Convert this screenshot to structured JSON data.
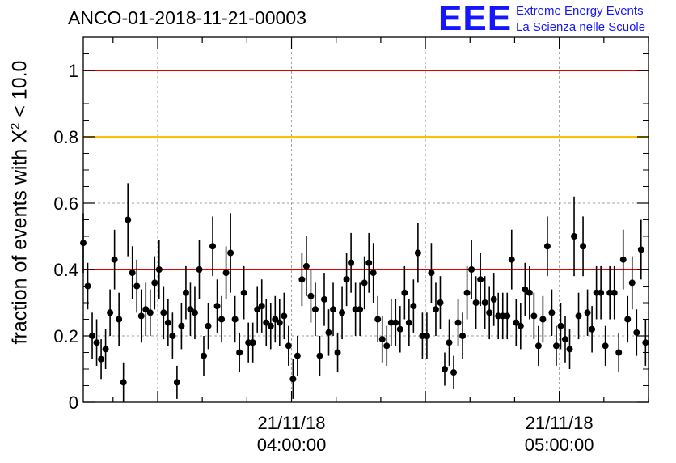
{
  "header": {
    "run_id": "ANCO-01-2018-11-21-00003",
    "logo_mark": "EEE",
    "logo_line1": "Extreme Energy Events",
    "logo_line2": "La Scienza nelle Scuole"
  },
  "colors": {
    "threshold_red": "#e00000",
    "threshold_yellow": "#ffc000",
    "logo_blue": "#1515ff",
    "points": "#000000"
  },
  "chart_data": {
    "type": "scatter",
    "title": "ANCO-01-2018-11-21-00003",
    "xlabel": "",
    "ylabel_prefix": "fraction of events with X",
    "ylabel_exp": "2",
    "ylabel_suffix": " < 10.0",
    "xlim": [
      "2018-11-21 03:13:20",
      "2018-11-21 05:20:00"
    ],
    "ylim": [
      0,
      1.1
    ],
    "grid": true,
    "y_ticks": [
      0,
      0.2,
      0.4,
      0.6,
      0.8,
      1
    ],
    "y_tick_labels": [
      "0",
      "0.2",
      "0.4",
      "0.6",
      "0.8",
      "1"
    ],
    "x_ticks": [
      {
        "time": "2018-11-21 04:00:00",
        "date_label": "21/11/18",
        "time_label": "04:00:00"
      },
      {
        "time": "2018-11-21 05:00:00",
        "date_label": "21/11/18",
        "time_label": "05:00:00"
      }
    ],
    "x_grid_times": [
      "2018-11-21 03:30:00",
      "2018-11-21 04:00:00",
      "2018-11-21 04:30:00",
      "2018-11-21 05:00:00"
    ],
    "reference_lines": [
      {
        "y": 1.0,
        "color": "#e00000"
      },
      {
        "y": 0.8,
        "color": "#ffc000"
      },
      {
        "y": 0.4,
        "color": "#e00000"
      }
    ],
    "series": [
      {
        "x": [
          "03:13:20",
          "03:14:20",
          "03:15:20",
          "03:16:20",
          "03:17:20",
          "03:18:20",
          "03:19:20",
          "03:20:20",
          "03:21:20",
          "03:22:20",
          "03:23:20",
          "03:24:20",
          "03:25:20",
          "03:26:20",
          "03:27:20",
          "03:28:20",
          "03:29:20",
          "03:30:20",
          "03:31:20",
          "03:32:20",
          "03:33:20",
          "03:34:20",
          "03:35:20",
          "03:36:20",
          "03:37:20",
          "03:38:20",
          "03:39:20",
          "03:40:20",
          "03:41:20",
          "03:42:20",
          "03:43:20",
          "03:44:20",
          "03:45:20",
          "03:46:20",
          "03:47:20",
          "03:48:20",
          "03:49:20",
          "03:50:20",
          "03:51:20",
          "03:52:20",
          "03:53:20",
          "03:54:20",
          "03:55:20",
          "03:56:20",
          "03:57:20",
          "03:58:20",
          "03:59:20",
          "04:00:20",
          "04:01:20",
          "04:02:20",
          "04:03:20",
          "04:04:20",
          "04:05:20",
          "04:06:20",
          "04:07:20",
          "04:08:20",
          "04:09:20",
          "04:10:20",
          "04:11:20",
          "04:12:20",
          "04:13:20",
          "04:14:20",
          "04:15:20",
          "04:16:20",
          "04:17:20",
          "04:18:20",
          "04:19:20",
          "04:20:20",
          "04:21:20",
          "04:22:20",
          "04:23:20",
          "04:24:20",
          "04:25:20",
          "04:26:20",
          "04:27:20",
          "04:28:20",
          "04:29:20",
          "04:30:20",
          "04:31:20",
          "04:32:20",
          "04:33:20",
          "04:34:20",
          "04:35:20",
          "04:36:20",
          "04:37:20",
          "04:38:20",
          "04:39:20",
          "04:40:20",
          "04:41:20",
          "04:42:20",
          "04:43:20",
          "04:44:20",
          "04:45:20",
          "04:46:20",
          "04:47:20",
          "04:48:20",
          "04:49:20",
          "04:50:20",
          "04:51:20",
          "04:52:20",
          "04:53:20",
          "04:54:20",
          "04:55:20",
          "04:56:20",
          "04:57:20",
          "04:58:20",
          "04:59:20",
          "05:00:20",
          "05:01:20",
          "05:02:20",
          "05:03:20",
          "05:04:20",
          "05:05:20",
          "05:06:20",
          "05:07:20",
          "05:08:20",
          "05:09:20",
          "05:10:20",
          "05:11:20",
          "05:12:20",
          "05:13:20",
          "05:14:20",
          "05:15:20",
          "05:16:20",
          "05:17:20",
          "05:18:20",
          "05:19:20"
        ],
        "y": [
          0.48,
          0.35,
          0.2,
          0.18,
          0.13,
          0.16,
          0.27,
          0.43,
          0.25,
          0.06,
          0.55,
          0.39,
          0.35,
          0.26,
          0.28,
          0.27,
          0.36,
          0.4,
          0.27,
          0.24,
          0.2,
          0.06,
          0.23,
          0.33,
          0.28,
          0.27,
          0.4,
          0.14,
          0.23,
          0.47,
          0.29,
          0.25,
          0.39,
          0.45,
          0.25,
          0.15,
          0.33,
          0.18,
          0.18,
          0.28,
          0.29,
          0.24,
          0.23,
          0.25,
          0.24,
          0.26,
          0.17,
          0.07,
          0.14,
          0.37,
          0.41,
          0.32,
          0.28,
          0.14,
          0.31,
          0.21,
          0.28,
          0.15,
          0.27,
          0.37,
          0.42,
          0.28,
          0.28,
          0.36,
          0.42,
          0.39,
          0.25,
          0.19,
          0.17,
          0.24,
          0.24,
          0.22,
          0.33,
          0.24,
          0.29,
          0.45,
          0.2,
          0.2,
          0.39,
          0.28,
          0.3,
          0.1,
          0.18,
          0.09,
          0.24,
          0.2,
          0.33,
          0.4,
          0.3,
          0.37,
          0.3,
          0.27,
          0.31,
          0.26,
          0.26,
          0.26,
          0.43,
          0.24,
          0.23,
          0.34,
          0.33,
          0.26,
          0.17,
          0.25,
          0.47,
          0.27,
          0.17,
          0.23,
          0.19,
          0.16,
          0.5,
          0.26,
          0.47,
          0.27,
          0.22,
          0.33,
          0.33,
          0.17,
          0.33,
          0.33,
          0.15,
          0.43,
          0.25,
          0.36,
          0.21,
          0.46,
          0.18
        ],
        "error": [
          0.09,
          0.07,
          0.07,
          0.07,
          0.06,
          0.06,
          0.07,
          0.09,
          0.08,
          0.06,
          0.11,
          0.08,
          0.08,
          0.08,
          0.08,
          0.07,
          0.08,
          0.09,
          0.08,
          0.07,
          0.07,
          0.05,
          0.07,
          0.08,
          0.08,
          0.08,
          0.09,
          0.06,
          0.07,
          0.09,
          0.08,
          0.07,
          0.08,
          0.12,
          0.07,
          0.06,
          0.08,
          0.06,
          0.06,
          0.07,
          0.08,
          0.07,
          0.07,
          0.07,
          0.07,
          0.07,
          0.06,
          0.06,
          0.06,
          0.08,
          0.09,
          0.08,
          0.08,
          0.06,
          0.08,
          0.07,
          0.08,
          0.06,
          0.08,
          0.08,
          0.09,
          0.08,
          0.08,
          0.08,
          0.09,
          0.09,
          0.07,
          0.07,
          0.06,
          0.07,
          0.07,
          0.07,
          0.08,
          0.07,
          0.08,
          0.09,
          0.07,
          0.07,
          0.09,
          0.08,
          0.08,
          0.05,
          0.07,
          0.05,
          0.07,
          0.07,
          0.08,
          0.09,
          0.08,
          0.08,
          0.08,
          0.08,
          0.08,
          0.07,
          0.07,
          0.07,
          0.09,
          0.07,
          0.07,
          0.08,
          0.08,
          0.07,
          0.06,
          0.07,
          0.09,
          0.07,
          0.06,
          0.07,
          0.07,
          0.06,
          0.12,
          0.07,
          0.09,
          0.07,
          0.07,
          0.08,
          0.08,
          0.06,
          0.08,
          0.08,
          0.06,
          0.09,
          0.07,
          0.08,
          0.07,
          0.09,
          0.07
        ]
      }
    ]
  }
}
